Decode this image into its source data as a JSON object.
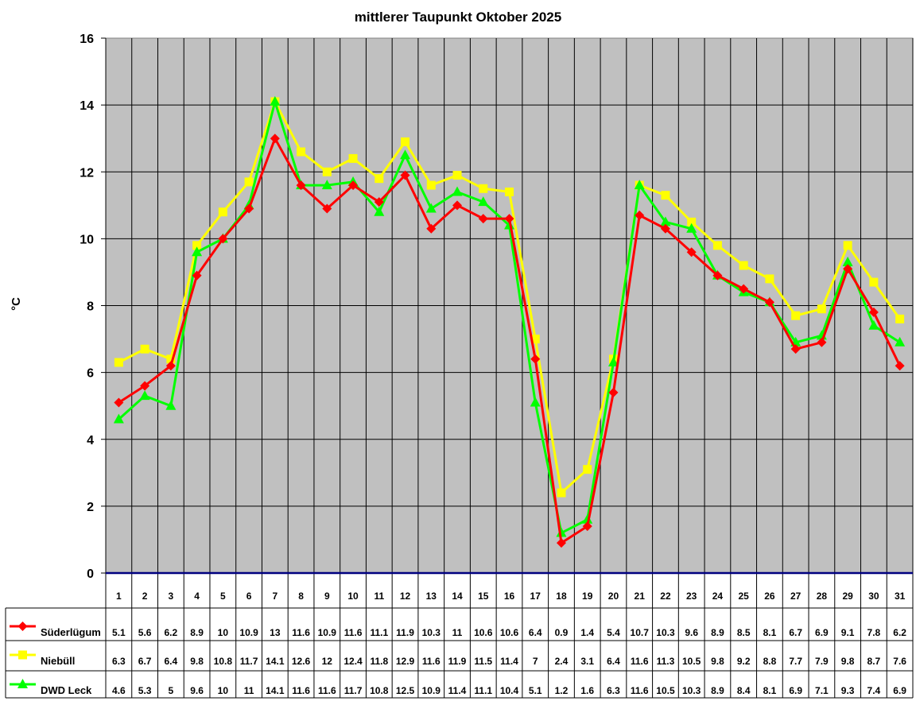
{
  "chart_data": {
    "type": "line",
    "title": "mittlerer Taupunkt Oktober 2025",
    "xlabel": "",
    "ylabel": "°C",
    "ylim": [
      0,
      16
    ],
    "yticks": [
      0,
      2,
      4,
      6,
      8,
      10,
      12,
      14,
      16
    ],
    "grid": true,
    "legend_position": "data-table-left",
    "categories": [
      "1",
      "2",
      "3",
      "4",
      "5",
      "6",
      "7",
      "8",
      "9",
      "10",
      "11",
      "12",
      "13",
      "14",
      "15",
      "16",
      "17",
      "18",
      "19",
      "20",
      "21",
      "22",
      "23",
      "24",
      "25",
      "26",
      "27",
      "28",
      "29",
      "30",
      "31"
    ],
    "series": [
      {
        "name": "Süderlügum",
        "color": "#ff0000",
        "marker": "diamond",
        "values": [
          5.1,
          5.6,
          6.2,
          8.9,
          10,
          10.9,
          13,
          11.6,
          10.9,
          11.6,
          11.1,
          11.9,
          10.3,
          11,
          10.6,
          10.6,
          6.4,
          0.9,
          1.4,
          5.4,
          10.7,
          10.3,
          9.6,
          8.9,
          8.5,
          8.1,
          6.7,
          6.9,
          9.1,
          7.8,
          6.2
        ]
      },
      {
        "name": "Niebüll",
        "color": "#ffff00",
        "marker": "square",
        "values": [
          6.3,
          6.7,
          6.4,
          9.8,
          10.8,
          11.7,
          14.1,
          12.6,
          12,
          12.4,
          11.8,
          12.9,
          11.6,
          11.9,
          11.5,
          11.4,
          7,
          2.4,
          3.1,
          6.4,
          11.6,
          11.3,
          10.5,
          9.8,
          9.2,
          8.8,
          7.7,
          7.9,
          9.8,
          8.7,
          7.6
        ]
      },
      {
        "name": "DWD Leck",
        "color": "#00ff00",
        "marker": "triangle",
        "values": [
          4.6,
          5.3,
          5,
          9.6,
          10,
          11,
          14.1,
          11.6,
          11.6,
          11.7,
          10.8,
          12.5,
          10.9,
          11.4,
          11.1,
          10.4,
          5.1,
          1.2,
          1.6,
          6.3,
          11.6,
          10.5,
          10.3,
          8.9,
          8.4,
          8.1,
          6.9,
          7.1,
          9.3,
          7.4,
          6.9
        ]
      }
    ],
    "value_labels": {
      "Süderlügum": [
        "5.1",
        "5.6",
        "6.2",
        "8.9",
        "10",
        "10.9",
        "13",
        "11.6",
        "10.9",
        "11.6",
        "11.1",
        "11.9",
        "10.3",
        "11",
        "10.6",
        "10.6",
        "6.4",
        "0.9",
        "1.4",
        "5.4",
        "10.7",
        "10.3",
        "9.6",
        "8.9",
        "8.5",
        "8.1",
        "6.7",
        "6.9",
        "9.1",
        "7.8",
        "6.2"
      ],
      "Niebüll": [
        "6.3",
        "6.7",
        "6.4",
        "9.8",
        "10.8",
        "11.7",
        "14.1",
        "12.6",
        "12",
        "12.4",
        "11.8",
        "12.9",
        "11.6",
        "11.9",
        "11.5",
        "11.4",
        "7",
        "2.4",
        "3.1",
        "6.4",
        "11.6",
        "11.3",
        "10.5",
        "9.8",
        "9.2",
        "8.8",
        "7.7",
        "7.9",
        "9.8",
        "8.7",
        "7.6"
      ],
      "DWD Leck": [
        "4.6",
        "5.3",
        "5",
        "9.6",
        "10",
        "11",
        "14.1",
        "11.6",
        "11.6",
        "11.7",
        "10.8",
        "12.5",
        "10.9",
        "11.4",
        "11.1",
        "10.4",
        "5.1",
        "1.2",
        "1.6",
        "6.3",
        "11.6",
        "10.5",
        "10.3",
        "8.9",
        "8.4",
        "8.1",
        "6.9",
        "7.1",
        "9.3",
        "7.4",
        "6.9"
      ]
    },
    "plot_colors": {
      "background": "#c0c0c0",
      "gridline": "#000000",
      "zero_line": "#000080"
    }
  }
}
